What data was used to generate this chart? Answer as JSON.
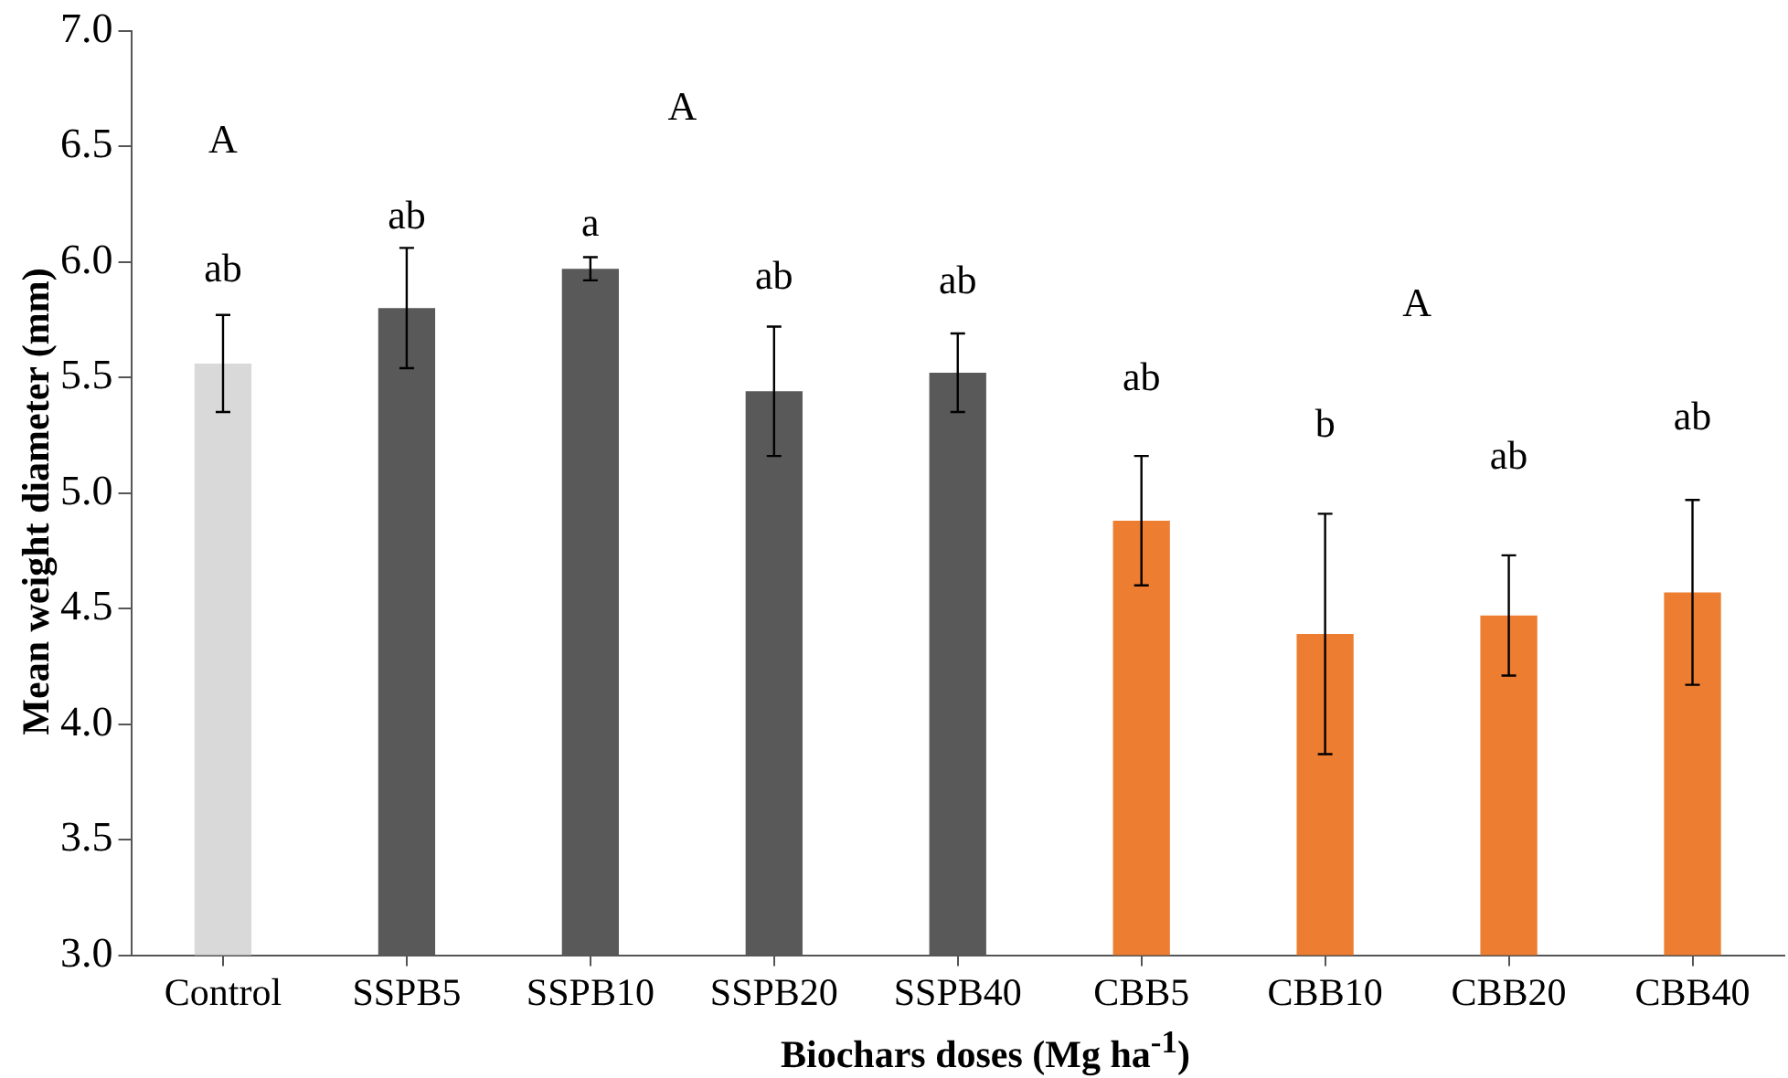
{
  "chart_data": {
    "type": "bar",
    "xlabel": "Biochars doses (Mg ha$^{-1}$)",
    "ylabel": "Mean weight diameter (mm)",
    "categories": [
      "Control",
      "SSPB5",
      "SSPB10",
      "SSPB20",
      "SSPB40",
      "CBB5",
      "CBB10",
      "CBB20",
      "CBB40"
    ],
    "values": [
      5.56,
      5.8,
      5.97,
      5.44,
      5.52,
      4.88,
      4.39,
      4.47,
      4.57
    ],
    "errors": [
      0.21,
      0.26,
      0.05,
      0.28,
      0.17,
      0.28,
      0.52,
      0.26,
      0.4
    ],
    "colors": [
      "#d9d9d9",
      "#595959",
      "#595959",
      "#595959",
      "#595959",
      "#ed7d31",
      "#ed7d31",
      "#ed7d31",
      "#ed7d31"
    ],
    "ylim": [
      3,
      7
    ],
    "yticks": [
      {
        "value": 3,
        "label": "3.0"
      },
      {
        "value": 3.5,
        "label": "3.5"
      },
      {
        "value": 4,
        "label": "4.0"
      },
      {
        "value": 4.5,
        "label": "4.5"
      },
      {
        "value": 5,
        "label": "5.0"
      },
      {
        "value": 5.5,
        "label": "5.5"
      },
      {
        "value": 6,
        "label": "6.0"
      },
      {
        "value": 6.5,
        "label": "6.5"
      },
      {
        "value": 7,
        "label": "7.0"
      }
    ],
    "grid": false,
    "legend": false,
    "annotations": [
      "A",
      "A",
      "A",
      "ab",
      "ab",
      "a",
      "ab",
      "ab",
      "ab",
      "b",
      "ab",
      "ab"
    ]
  }
}
